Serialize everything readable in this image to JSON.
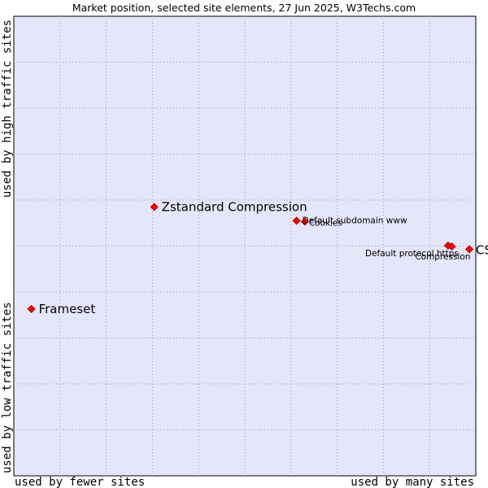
{
  "chart_data": {
    "type": "scatter",
    "title": "Market position, selected site elements, 27 Jun 2025, W3Techs.com",
    "xlabel_left": "used by fewer sites",
    "xlabel_right": "used by many sites",
    "ylabel_bottom": "used by low traffic sites",
    "ylabel_top": "used by high traffic sites",
    "xlim": [
      0,
      100
    ],
    "ylim": [
      0,
      100
    ],
    "grid": true,
    "colors": {
      "plot_bg": "#e6e6fa",
      "grid": "#9a9aa8",
      "point": "#ff0000",
      "point_edge": "#aa0000",
      "text": "#000000"
    },
    "points": [
      {
        "label": "Zstandard Compression",
        "x": 30.4,
        "y": 58.5,
        "emphasis": "large"
      },
      {
        "label": "Frameset",
        "x": 3.8,
        "y": 36.3,
        "emphasis": "large"
      },
      {
        "label": "CSS",
        "x": 98.6,
        "y": 49.3,
        "emphasis": "large"
      },
      {
        "label": "Default subdomain www",
        "x": 61.2,
        "y": 55.5,
        "emphasis": "small"
      },
      {
        "label": "Cookies",
        "x": 63.0,
        "y": 55.3,
        "emphasis": "small"
      },
      {
        "label": "Default protocol https",
        "x": 94.0,
        "y": 50.1,
        "emphasis": "small"
      },
      {
        "label": "Compression",
        "x": 94.8,
        "y": 49.9,
        "emphasis": "small"
      }
    ]
  }
}
